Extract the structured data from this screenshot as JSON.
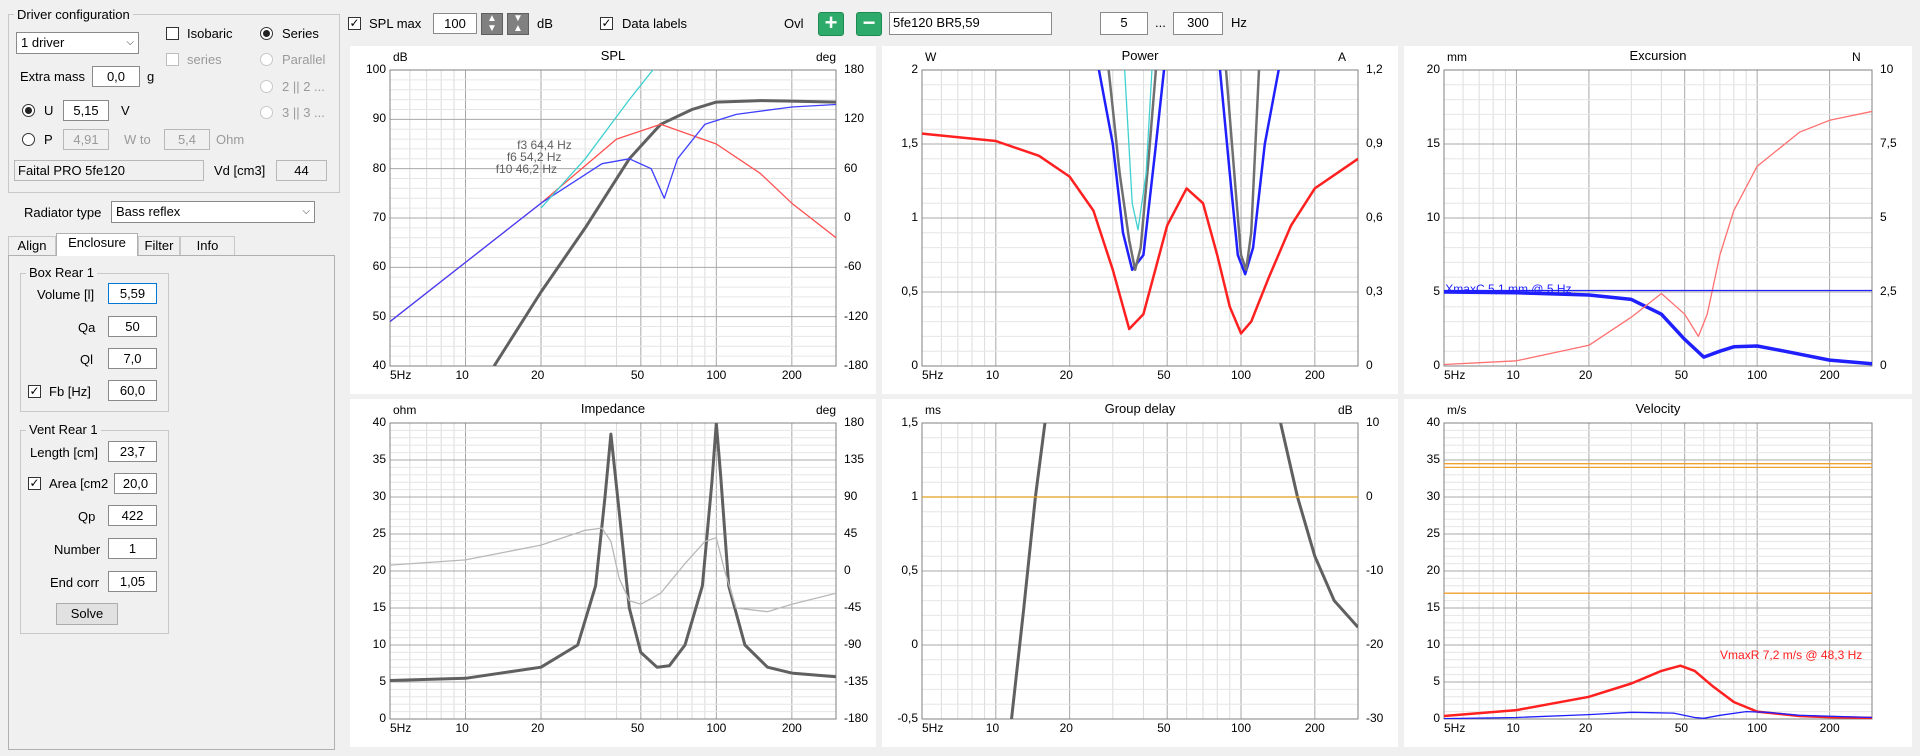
{
  "driver_config": {
    "title": "Driver configuration",
    "drivers_select": "1 driver",
    "isobaric": "Isobaric",
    "series": "Series",
    "series_dis": "series",
    "parallel": "Parallel",
    "opt2": "2 || 2 ...",
    "opt3": "3 || 3 ...",
    "extra_mass_label": "Extra mass",
    "extra_mass": "0,0",
    "extra_mass_unit": "g",
    "u_label": "U",
    "u_value": "5,15",
    "u_unit": "V",
    "p_label": "P",
    "p_value": "4,91",
    "w_to": "W to",
    "ohm_value": "5,4",
    "ohm_unit": "Ohm",
    "driver_name": "Faital PRO 5fe120",
    "vd_label": "Vd [cm3]",
    "vd_value": "44"
  },
  "radiator": {
    "label": "Radiator type",
    "value": "Bass reflex"
  },
  "tabs": [
    "Align",
    "Enclosure",
    "Filter",
    "Info"
  ],
  "box": {
    "title": "Box Rear 1",
    "volume_label": "Volume [l]",
    "volume": "5,59",
    "qa_label": "Qa",
    "qa": "50",
    "ql_label": "Ql",
    "ql": "7,0",
    "fb_label": "Fb [Hz]",
    "fb": "60,0"
  },
  "vent": {
    "title": "Vent Rear 1",
    "length_label": "Length [cm]",
    "length": "23,7",
    "area_label": "Area [cm2",
    "area": "20,0",
    "qp_label": "Qp",
    "qp": "422",
    "number_label": "Number",
    "number": "1",
    "endcorr_label": "End corr",
    "endcorr": "1,05",
    "solve": "Solve"
  },
  "toolbar": {
    "spl_max_label": "SPL max",
    "spl_max": "100",
    "db": "dB",
    "data_labels": "Data labels",
    "ovl": "Ovl",
    "overlay_name": "5fe120 BR5,59",
    "f_min": "5",
    "dots": "...",
    "f_max": "300",
    "hz": "Hz"
  },
  "chart_data": [
    {
      "type": "line",
      "title": "SPL",
      "ylabel": "dB",
      "y2label": "deg",
      "x_ticks": [
        "5Hz",
        "10",
        "20",
        "50",
        "100",
        "200"
      ],
      "y_ticks": [
        "100",
        "90",
        "80",
        "70",
        "60",
        "50",
        "40"
      ],
      "y2_ticks": [
        "180",
        "120",
        "60",
        "0",
        "-60",
        "-120",
        "-180"
      ],
      "ylim": [
        40,
        100
      ],
      "y2lim": [
        -180,
        180
      ],
      "annotations": [
        "f3 64,4 Hz",
        "f6 54,2 Hz",
        "f10 46,2 Hz"
      ],
      "series": [
        {
          "color": "#606060",
          "x": [
            13,
            20,
            30,
            45,
            60,
            80,
            100,
            150,
            200,
            300
          ],
          "y": [
            40,
            55,
            68,
            82,
            89,
            92,
            93.5,
            93.8,
            93.7,
            93.5
          ]
        },
        {
          "color": "#ff5050",
          "x": [
            5,
            10,
            20,
            40,
            60,
            100,
            150,
            200,
            300
          ],
          "y": [
            49,
            61,
            73,
            86,
            89,
            85,
            79,
            73,
            66
          ]
        },
        {
          "color": "#4040ff",
          "x": [
            5,
            10,
            20,
            35,
            45,
            55,
            62,
            70,
            90,
            120,
            200,
            300
          ],
          "y": [
            49,
            61,
            73,
            81,
            82,
            80,
            74,
            82,
            89,
            91,
            92.5,
            93
          ]
        },
        {
          "color": "#40d0d0",
          "x": [
            20,
            30,
            45,
            60,
            80
          ],
          "y": [
            72,
            82,
            94,
            102,
            110
          ]
        }
      ]
    },
    {
      "type": "line",
      "title": "Power",
      "ylabel": "W",
      "y2label": "A",
      "x_ticks": [
        "5Hz",
        "10",
        "20",
        "50",
        "100",
        "200"
      ],
      "y_ticks": [
        "2",
        "1,5",
        "1",
        "0,5",
        "0"
      ],
      "y2_ticks": [
        "1,2",
        "0,9",
        "0,6",
        "0,3",
        "0"
      ],
      "ylim": [
        0,
        2
      ],
      "y2lim": [
        0,
        1.2
      ],
      "series": [
        {
          "color": "#ff2020",
          "x": [
            5,
            10,
            15,
            20,
            25,
            30,
            35,
            40,
            50,
            60,
            70,
            80,
            90,
            100,
            110,
            130,
            160,
            200,
            300
          ],
          "y": [
            1.57,
            1.52,
            1.42,
            1.28,
            1.05,
            0.65,
            0.25,
            0.35,
            0.95,
            1.2,
            1.1,
            0.75,
            0.4,
            0.22,
            0.3,
            0.6,
            0.95,
            1.2,
            1.4
          ]
        },
        {
          "color": "#2020ff",
          "x": [
            25,
            30,
            33,
            36,
            40,
            45,
            50,
            80,
            90,
            97,
            104,
            112,
            125,
            150
          ],
          "y": [
            2.2,
            1.5,
            0.9,
            0.65,
            0.75,
            1.5,
            2.2,
            2.2,
            1.3,
            0.75,
            0.62,
            0.8,
            1.5,
            2.2
          ]
        },
        {
          "color": "#707070",
          "x": [
            28,
            32,
            35,
            37,
            39,
            42,
            46,
            85,
            95,
            100,
            105,
            110,
            120
          ],
          "y": [
            2.2,
            1.3,
            0.85,
            0.65,
            0.8,
            1.4,
            2.2,
            2.2,
            1.2,
            0.75,
            0.65,
            0.9,
            2.2
          ]
        },
        {
          "color": "#40d0d0",
          "x": [
            33,
            36,
            38,
            41,
            44
          ],
          "y": [
            2.2,
            1.1,
            0.92,
            1.3,
            2.2
          ]
        }
      ]
    },
    {
      "type": "line",
      "title": "Excursion",
      "ylabel": "mm",
      "y2label": "N",
      "x_ticks": [
        "5Hz",
        "10",
        "20",
        "50",
        "100",
        "200"
      ],
      "y_ticks": [
        "20",
        "15",
        "10",
        "5",
        "0"
      ],
      "y2_ticks": [
        "10",
        "7,5",
        "5",
        "2,5",
        "0"
      ],
      "ylim": [
        0,
        20
      ],
      "y2lim": [
        0,
        10
      ],
      "annotations": [
        "XmaxC 5,1 mm  @ 5 Hz"
      ],
      "series": [
        {
          "color": "#2020ff",
          "x": [
            5,
            10,
            20,
            30,
            40,
            50,
            60,
            70,
            80,
            100,
            130,
            200,
            300
          ],
          "y": [
            5,
            4.95,
            4.8,
            4.5,
            3.5,
            1.8,
            0.6,
            1.0,
            1.3,
            1.35,
            1.0,
            0.4,
            0.15
          ]
        },
        {
          "color": "#ff7070",
          "x": [
            5,
            10,
            20,
            30,
            40,
            50,
            57,
            62,
            70,
            80,
            100,
            150,
            200,
            300
          ],
          "y": [
            0.1,
            0.35,
            1.4,
            3.3,
            4.9,
            3.5,
            2.0,
            3.5,
            7.5,
            10.5,
            13.5,
            15.8,
            16.6,
            17.2
          ]
        },
        {
          "color": "#2020ff",
          "x": [
            5,
            300
          ],
          "y": [
            5.1,
            5.1
          ]
        }
      ]
    },
    {
      "type": "line",
      "title": "Impedance",
      "ylabel": "ohm",
      "y2label": "deg",
      "x_ticks": [
        "5Hz",
        "10",
        "20",
        "50",
        "100",
        "200"
      ],
      "y_ticks": [
        "40",
        "35",
        "30",
        "25",
        "20",
        "15",
        "10",
        "5",
        "0"
      ],
      "y2_ticks": [
        "180",
        "135",
        "90",
        "45",
        "0",
        "-45",
        "-90",
        "-135",
        "-180"
      ],
      "ylim": [
        0,
        40
      ],
      "y2lim": [
        -180,
        180
      ],
      "series": [
        {
          "color": "#606060",
          "x": [
            5,
            10,
            20,
            28,
            33,
            36,
            38,
            41,
            45,
            50,
            58,
            65,
            75,
            88,
            96,
            100,
            104,
            112,
            130,
            160,
            200,
            300
          ],
          "y": [
            5.2,
            5.5,
            7,
            10,
            18,
            30,
            38.5,
            28,
            15,
            9,
            7,
            7.2,
            10,
            18,
            32,
            40,
            33,
            18,
            10,
            7,
            6.2,
            5.7
          ]
        },
        {
          "color": "#b8b8b8",
          "x": [
            5,
            10,
            20,
            30,
            35,
            38,
            41,
            45,
            50,
            60,
            75,
            90,
            100,
            108,
            120,
            160,
            200,
            300
          ],
          "y": [
            20.8,
            21.5,
            23.5,
            25.5,
            25.8,
            24,
            19,
            16,
            15.5,
            17,
            21,
            24,
            24.5,
            20,
            15,
            14.5,
            15.5,
            17
          ]
        }
      ]
    },
    {
      "type": "line",
      "title": "Group delay",
      "ylabel": "ms",
      "y2label": "dB",
      "x_ticks": [
        "5Hz",
        "10",
        "20",
        "50",
        "100",
        "200"
      ],
      "y_ticks": [
        "1,5",
        "1",
        "0,5",
        "0",
        "-0,5"
      ],
      "y2_ticks": [
        "10",
        "0",
        "-10",
        "-20",
        "-30"
      ],
      "ylim": [
        -0.5,
        1.5
      ],
      "y2lim": [
        -30,
        10
      ],
      "series": [
        {
          "color": "#606060",
          "x": [
            11.5,
            13,
            14.5,
            16
          ],
          "y": [
            -0.55,
            0.25,
            1.0,
            1.55
          ]
        },
        {
          "color": "#606060",
          "x": [
            145,
            170,
            200,
            240,
            300
          ],
          "y": [
            1.5,
            1.0,
            0.6,
            0.3,
            0.12
          ]
        },
        {
          "color": "#e0a020",
          "x": [
            5,
            300
          ],
          "y": [
            1,
            1
          ]
        }
      ]
    },
    {
      "type": "line",
      "title": "Velocity",
      "ylabel": "m/s",
      "x_ticks": [
        "5Hz",
        "10",
        "20",
        "50",
        "100",
        "200"
      ],
      "y_ticks": [
        "40",
        "35",
        "30",
        "25",
        "20",
        "15",
        "10",
        "5",
        "0"
      ],
      "ylim": [
        0,
        40
      ],
      "annotations": [
        "VmaxR 7,2 m/s @ 48,3 Hz"
      ],
      "series": [
        {
          "color": "#ff2020",
          "x": [
            5,
            10,
            20,
            30,
            40,
            48,
            55,
            65,
            80,
            100,
            150,
            200,
            300
          ],
          "y": [
            0.4,
            1.2,
            3.0,
            4.8,
            6.5,
            7.2,
            6.5,
            4.5,
            2.3,
            1.0,
            0.4,
            0.25,
            0.15
          ]
        },
        {
          "color": "#2020ff",
          "x": [
            5,
            10,
            20,
            30,
            45,
            55,
            60,
            70,
            90,
            110,
            150,
            300
          ],
          "y": [
            0.05,
            0.2,
            0.6,
            0.9,
            0.8,
            0.2,
            0.1,
            0.5,
            1.0,
            0.9,
            0.5,
            0.2
          ]
        },
        {
          "color": "#f0a030",
          "x": [
            5,
            300
          ],
          "y": [
            34.5,
            34.5
          ]
        },
        {
          "color": "#f0a030",
          "x": [
            5,
            300
          ],
          "y": [
            34.0,
            34.0
          ]
        },
        {
          "color": "#f0a030",
          "x": [
            5,
            300
          ],
          "y": [
            17.0,
            17.0
          ]
        }
      ]
    }
  ]
}
